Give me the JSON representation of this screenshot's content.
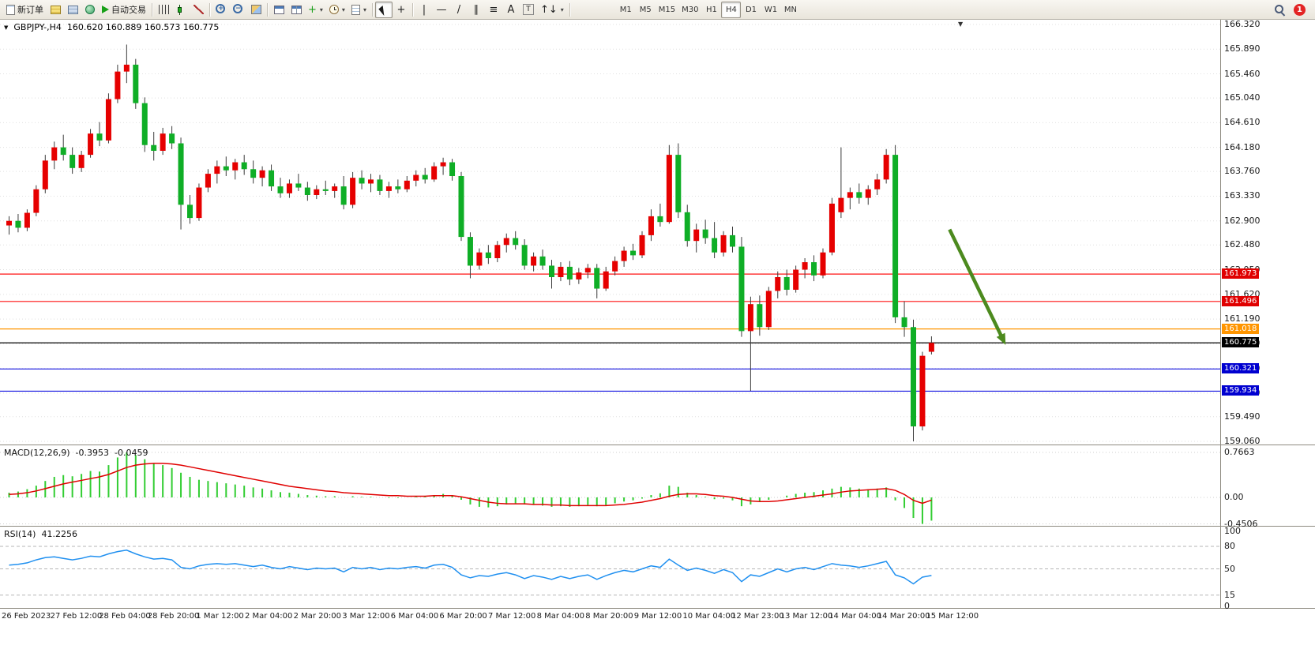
{
  "toolbar": {
    "dropdown_glyph": "▾",
    "notification_count": "1",
    "items": [
      {
        "name": "new-order-button",
        "icon": "new-order-icon",
        "shape": "doc",
        "label": "新订单"
      },
      {
        "name": "chart-group-button",
        "icon": "chart-group-icon",
        "shape": "grid-gold"
      },
      {
        "name": "market-watch-button",
        "icon": "market-watch-icon",
        "shape": "grid-blue"
      },
      {
        "name": "strategy-tester-button",
        "icon": "tester-globe-icon",
        "shape": "globe"
      },
      {
        "name": "auto-trading-button",
        "icon": "play-icon",
        "shape": "play",
        "label": "自动交易"
      },
      {
        "sep": true
      },
      {
        "name": "bar-chart-button",
        "icon": "bar-chart-icon",
        "shape": "bars"
      },
      {
        "name": "candlestick-chart-button",
        "icon": "candlestick-icon",
        "shape": "candle"
      },
      {
        "name": "line-chart-button",
        "icon": "line-chart-icon",
        "shape": "linechart"
      },
      {
        "sep": true
      },
      {
        "name": "zoom-in-button",
        "icon": "zoom-in-icon",
        "shape": "zoom-in"
      },
      {
        "name": "zoom-out-button",
        "icon": "zoom-out-icon",
        "shape": "zoom-out"
      },
      {
        "name": "new-chart-button",
        "icon": "new-chart-icon",
        "shape": "win-grid"
      },
      {
        "sep": true
      },
      {
        "name": "tile-windows-button",
        "icon": "tile-windows-icon",
        "shape": "tile1"
      },
      {
        "name": "cascade-windows-button",
        "icon": "cascade-windows-icon",
        "shape": "tile2"
      },
      {
        "name": "indicators-button",
        "icon": "indicators-plus-icon",
        "glyph": "+",
        "color": "#1a9e1a",
        "dropdown": true
      },
      {
        "name": "periods-button",
        "icon": "clock-icon",
        "shape": "clock",
        "dropdown": true
      },
      {
        "name": "templates-button",
        "icon": "template-icon",
        "shape": "template",
        "dropdown": true
      },
      {
        "sep": true
      },
      {
        "name": "cursor-button",
        "icon": "cursor-icon",
        "shape": "cursor",
        "active": true
      },
      {
        "name": "crosshair-button",
        "icon": "crosshair-icon",
        "glyph": "+"
      },
      {
        "sep": true
      },
      {
        "name": "vertical-line-button",
        "icon": "vertical-line-icon",
        "glyph": "|"
      },
      {
        "name": "horizontal-line-button",
        "icon": "horizontal-line-icon",
        "glyph": "—"
      },
      {
        "name": "trendline-button",
        "icon": "trendline-icon",
        "glyph": "/"
      },
      {
        "name": "channel-button",
        "icon": "channel-icon",
        "glyph": "∥"
      },
      {
        "name": "fibonacci-button",
        "icon": "fibonacci-icon",
        "glyph": "≡"
      },
      {
        "name": "text-button",
        "icon": "text-icon",
        "glyph": "A"
      },
      {
        "name": "label-button",
        "icon": "label-icon",
        "glyph": "T",
        "shape": "boxed"
      },
      {
        "name": "arrows-button",
        "icon": "arrows-icon",
        "glyph": "↑↓",
        "dropdown": true
      },
      {
        "sep": true
      },
      {
        "gap": true
      },
      {
        "tf": true,
        "label": "M1",
        "name": "timeframe-m1"
      },
      {
        "tf": true,
        "label": "M5",
        "name": "timeframe-m5"
      },
      {
        "tf": true,
        "label": "M15",
        "name": "timeframe-m15"
      },
      {
        "tf": true,
        "label": "M30",
        "name": "timeframe-m30"
      },
      {
        "tf": true,
        "label": "H1",
        "name": "timeframe-h1"
      },
      {
        "tf": true,
        "label": "H4",
        "name": "timeframe-h4",
        "active": true
      },
      {
        "tf": true,
        "label": "D1",
        "name": "timeframe-d1"
      },
      {
        "tf": true,
        "label": "W1",
        "name": "timeframe-w1"
      },
      {
        "tf": true,
        "label": "MN",
        "name": "timeframe-mn"
      }
    ]
  },
  "chart_data": {
    "type": "candlestick",
    "title_marker": "▼",
    "shift_marker": "▼",
    "title": {
      "symbol_period": "GBPJPY-,H4",
      "ohlc": "160.620 160.889 160.573 160.775"
    },
    "colors": {
      "up": "#e60000",
      "down": "#0fae26",
      "wick": "#3c3c3c",
      "grid": "#e0e0e0",
      "macd_hist": "#32cd32",
      "macd_signal": "#e00000",
      "rsi_line": "#2090f0",
      "arrow": "#4c8a1e"
    },
    "price_axis": {
      "max": 166.32,
      "min": 159.06,
      "labels": [
        "166.320",
        "165.890",
        "165.460",
        "165.040",
        "164.610",
        "164.180",
        "163.760",
        "163.330",
        "162.900",
        "162.480",
        "162.050",
        "161.620",
        "161.190",
        "160.760",
        "160.330",
        "159.900",
        "159.490",
        "159.060"
      ]
    },
    "hlines": [
      {
        "price": 161.973,
        "label": "161.973",
        "color": "#ff1010",
        "badge": "#e00000"
      },
      {
        "price": 161.496,
        "label": "161.496",
        "color": "#ff1010",
        "badge": "#e00000"
      },
      {
        "price": 161.018,
        "label": "161.018",
        "color": "#ff9500",
        "badge": "#ff9500"
      },
      {
        "price": 160.775,
        "label": "160.775",
        "color": "#000000",
        "badge": "#000000"
      },
      {
        "price": 160.321,
        "label": "160.321",
        "color": "#1010e0",
        "badge": "#0000d0"
      },
      {
        "price": 159.934,
        "label": "159.934",
        "color": "#1010e0",
        "badge": "#0000d0"
      }
    ],
    "arrow": {
      "from": [
        104.0,
        162.75
      ],
      "to": [
        110.2,
        160.74
      ]
    },
    "candles": [
      [
        162.82,
        162.98,
        162.66,
        162.9
      ],
      [
        162.9,
        163.02,
        162.7,
        162.78
      ],
      [
        162.78,
        163.1,
        162.72,
        163.04
      ],
      [
        163.04,
        163.52,
        162.98,
        163.45
      ],
      [
        163.45,
        164.05,
        163.38,
        163.95
      ],
      [
        163.95,
        164.28,
        163.8,
        164.18
      ],
      [
        164.18,
        164.4,
        163.95,
        164.05
      ],
      [
        164.05,
        164.18,
        163.72,
        163.82
      ],
      [
        163.82,
        164.12,
        163.75,
        164.05
      ],
      [
        164.05,
        164.5,
        164.0,
        164.42
      ],
      [
        164.42,
        164.62,
        164.2,
        164.3
      ],
      [
        164.3,
        165.12,
        164.25,
        165.02
      ],
      [
        165.02,
        165.62,
        164.95,
        165.5
      ],
      [
        165.5,
        165.97,
        165.3,
        165.62
      ],
      [
        165.62,
        165.72,
        164.85,
        164.95
      ],
      [
        164.95,
        165.05,
        164.1,
        164.22
      ],
      [
        164.22,
        164.45,
        163.95,
        164.12
      ],
      [
        164.12,
        164.52,
        164.05,
        164.42
      ],
      [
        164.42,
        164.55,
        164.15,
        164.25
      ],
      [
        164.25,
        164.35,
        162.75,
        163.18
      ],
      [
        163.18,
        163.35,
        162.85,
        162.95
      ],
      [
        162.95,
        163.55,
        162.9,
        163.48
      ],
      [
        163.48,
        163.8,
        163.4,
        163.72
      ],
      [
        163.72,
        163.95,
        163.55,
        163.85
      ],
      [
        163.85,
        164.02,
        163.68,
        163.78
      ],
      [
        163.78,
        163.98,
        163.62,
        163.92
      ],
      [
        163.92,
        164.05,
        163.7,
        163.8
      ],
      [
        163.8,
        163.95,
        163.55,
        163.65
      ],
      [
        163.65,
        163.85,
        163.5,
        163.78
      ],
      [
        163.78,
        163.88,
        163.42,
        163.5
      ],
      [
        163.5,
        163.65,
        163.3,
        163.38
      ],
      [
        163.38,
        163.62,
        163.3,
        163.55
      ],
      [
        163.55,
        163.72,
        163.42,
        163.48
      ],
      [
        163.48,
        163.58,
        163.25,
        163.35
      ],
      [
        163.35,
        163.52,
        163.28,
        163.45
      ],
      [
        163.45,
        163.6,
        163.35,
        163.42
      ],
      [
        163.42,
        163.55,
        163.3,
        163.5
      ],
      [
        163.5,
        163.68,
        163.1,
        163.18
      ],
      [
        163.18,
        163.75,
        163.12,
        163.65
      ],
      [
        163.65,
        163.78,
        163.45,
        163.55
      ],
      [
        163.55,
        163.72,
        163.4,
        163.62
      ],
      [
        163.62,
        163.7,
        163.35,
        163.42
      ],
      [
        163.42,
        163.58,
        163.3,
        163.5
      ],
      [
        163.5,
        163.62,
        163.38,
        163.45
      ],
      [
        163.45,
        163.68,
        163.4,
        163.6
      ],
      [
        163.6,
        163.78,
        163.5,
        163.7
      ],
      [
        163.7,
        163.82,
        163.55,
        163.62
      ],
      [
        163.62,
        163.92,
        163.58,
        163.85
      ],
      [
        163.85,
        164.0,
        163.7,
        163.92
      ],
      [
        163.92,
        163.98,
        163.6,
        163.68
      ],
      [
        163.68,
        163.75,
        162.55,
        162.62
      ],
      [
        162.62,
        162.7,
        161.9,
        162.12
      ],
      [
        162.12,
        162.42,
        162.05,
        162.35
      ],
      [
        162.35,
        162.48,
        162.15,
        162.25
      ],
      [
        162.25,
        162.55,
        162.18,
        162.48
      ],
      [
        162.48,
        162.68,
        162.35,
        162.6
      ],
      [
        162.6,
        162.72,
        162.4,
        162.48
      ],
      [
        162.48,
        162.58,
        162.05,
        162.12
      ],
      [
        162.12,
        162.35,
        162.02,
        162.28
      ],
      [
        162.28,
        162.4,
        162.05,
        162.12
      ],
      [
        162.12,
        162.22,
        161.72,
        161.92
      ],
      [
        161.92,
        162.18,
        161.85,
        162.1
      ],
      [
        162.1,
        162.2,
        161.78,
        161.88
      ],
      [
        161.88,
        162.08,
        161.8,
        162.0
      ],
      [
        162.0,
        162.15,
        161.9,
        162.08
      ],
      [
        162.08,
        162.15,
        161.55,
        161.72
      ],
      [
        161.72,
        162.1,
        161.68,
        162.02
      ],
      [
        162.02,
        162.28,
        161.95,
        162.2
      ],
      [
        162.2,
        162.45,
        162.1,
        162.38
      ],
      [
        162.38,
        162.5,
        162.22,
        162.3
      ],
      [
        162.3,
        162.72,
        162.25,
        162.65
      ],
      [
        162.65,
        163.1,
        162.55,
        162.98
      ],
      [
        162.98,
        163.2,
        162.8,
        162.88
      ],
      [
        162.88,
        164.22,
        162.85,
        164.05
      ],
      [
        164.05,
        164.25,
        162.95,
        163.05
      ],
      [
        163.05,
        163.18,
        162.45,
        162.55
      ],
      [
        162.55,
        162.85,
        162.35,
        162.75
      ],
      [
        162.75,
        162.92,
        162.5,
        162.6
      ],
      [
        162.6,
        162.88,
        162.25,
        162.35
      ],
      [
        162.35,
        162.72,
        162.28,
        162.65
      ],
      [
        162.65,
        162.8,
        162.35,
        162.45
      ],
      [
        162.45,
        162.62,
        160.88,
        160.98
      ],
      [
        160.98,
        161.58,
        159.94,
        161.45
      ],
      [
        161.45,
        161.6,
        160.9,
        161.05
      ],
      [
        161.05,
        161.75,
        161.0,
        161.68
      ],
      [
        161.68,
        162.02,
        161.55,
        161.92
      ],
      [
        161.92,
        162.05,
        161.6,
        161.7
      ],
      [
        161.7,
        162.12,
        161.65,
        162.05
      ],
      [
        162.05,
        162.25,
        161.9,
        162.18
      ],
      [
        162.18,
        162.3,
        161.85,
        161.95
      ],
      [
        161.95,
        162.42,
        161.9,
        162.35
      ],
      [
        162.35,
        163.3,
        162.3,
        163.2
      ],
      [
        163.05,
        164.18,
        162.95,
        163.3
      ],
      [
        163.3,
        163.48,
        163.1,
        163.4
      ],
      [
        163.4,
        163.55,
        163.2,
        163.3
      ],
      [
        163.3,
        163.52,
        163.18,
        163.45
      ],
      [
        163.45,
        163.72,
        163.35,
        163.62
      ],
      [
        163.62,
        164.15,
        163.55,
        164.05
      ],
      [
        164.05,
        164.22,
        161.12,
        161.22
      ],
      [
        161.22,
        161.5,
        160.88,
        161.05
      ],
      [
        161.05,
        161.18,
        159.06,
        159.32
      ],
      [
        159.32,
        160.62,
        159.25,
        160.55
      ],
      [
        160.62,
        160.889,
        160.573,
        160.775
      ]
    ],
    "macd": {
      "name": "MACD(12,26,9)",
      "value_main": "-0.3953",
      "value_signal": "-0.0459",
      "scale": [
        0.7663,
        0,
        -0.4506
      ],
      "scale_labels": [
        "0.7663",
        "0.00",
        "-0.4506"
      ],
      "histogram": [
        0.08,
        0.1,
        0.14,
        0.2,
        0.28,
        0.35,
        0.38,
        0.36,
        0.4,
        0.45,
        0.44,
        0.55,
        0.68,
        0.7663,
        0.72,
        0.65,
        0.58,
        0.55,
        0.5,
        0.42,
        0.35,
        0.3,
        0.28,
        0.26,
        0.24,
        0.22,
        0.2,
        0.17,
        0.15,
        0.12,
        0.09,
        0.08,
        0.06,
        0.04,
        0.03,
        0.02,
        0.02,
        0.0,
        0.02,
        0.01,
        0.01,
        0.0,
        -0.01,
        -0.01,
        0.0,
        0.02,
        0.02,
        0.04,
        0.06,
        0.04,
        -0.04,
        -0.12,
        -0.16,
        -0.17,
        -0.15,
        -0.12,
        -0.1,
        -0.12,
        -0.13,
        -0.14,
        -0.16,
        -0.15,
        -0.16,
        -0.15,
        -0.13,
        -0.15,
        -0.13,
        -0.1,
        -0.07,
        -0.05,
        -0.02,
        0.04,
        0.07,
        0.2,
        0.18,
        0.08,
        0.04,
        0.01,
        -0.03,
        -0.02,
        -0.05,
        -0.15,
        -0.12,
        -0.08,
        -0.04,
        0.0,
        0.03,
        0.06,
        0.08,
        0.09,
        0.12,
        0.15,
        0.18,
        0.17,
        0.15,
        0.14,
        0.15,
        0.17,
        -0.05,
        -0.18,
        -0.35,
        -0.4506,
        -0.3953
      ],
      "signal": [
        0.05,
        0.06,
        0.08,
        0.11,
        0.15,
        0.19,
        0.23,
        0.26,
        0.29,
        0.32,
        0.35,
        0.39,
        0.45,
        0.51,
        0.55,
        0.57,
        0.58,
        0.58,
        0.57,
        0.55,
        0.52,
        0.49,
        0.46,
        0.43,
        0.4,
        0.37,
        0.34,
        0.31,
        0.28,
        0.25,
        0.22,
        0.19,
        0.17,
        0.15,
        0.13,
        0.11,
        0.1,
        0.08,
        0.07,
        0.06,
        0.05,
        0.04,
        0.03,
        0.03,
        0.02,
        0.02,
        0.02,
        0.03,
        0.03,
        0.03,
        0.01,
        -0.02,
        -0.05,
        -0.08,
        -0.1,
        -0.11,
        -0.11,
        -0.11,
        -0.12,
        -0.12,
        -0.13,
        -0.13,
        -0.14,
        -0.14,
        -0.14,
        -0.14,
        -0.14,
        -0.13,
        -0.12,
        -0.1,
        -0.08,
        -0.05,
        -0.02,
        0.02,
        0.05,
        0.06,
        0.06,
        0.05,
        0.03,
        0.02,
        0.0,
        -0.03,
        -0.06,
        -0.07,
        -0.07,
        -0.06,
        -0.04,
        -0.02,
        0.0,
        0.02,
        0.04,
        0.06,
        0.09,
        0.11,
        0.12,
        0.13,
        0.14,
        0.15,
        0.12,
        0.05,
        -0.05,
        -0.1,
        -0.0459
      ]
    },
    "rsi": {
      "name": "RSI(14)",
      "value": "41.2256",
      "scale": [
        100,
        80,
        50,
        15,
        0
      ],
      "scale_labels": [
        "100",
        "80",
        "50",
        "15",
        "0"
      ],
      "levels": [
        80,
        50,
        15
      ],
      "values": [
        55,
        56,
        58,
        62,
        65,
        66,
        64,
        62,
        64,
        67,
        66,
        70,
        73,
        75,
        70,
        66,
        63,
        64,
        62,
        52,
        50,
        54,
        56,
        57,
        56,
        57,
        55,
        53,
        55,
        52,
        50,
        53,
        51,
        49,
        51,
        50,
        51,
        46,
        52,
        50,
        52,
        49,
        51,
        50,
        52,
        53,
        51,
        55,
        56,
        52,
        42,
        38,
        41,
        40,
        43,
        45,
        42,
        37,
        41,
        39,
        36,
        40,
        37,
        40,
        42,
        36,
        41,
        45,
        48,
        46,
        50,
        54,
        52,
        63,
        55,
        48,
        51,
        48,
        44,
        49,
        45,
        33,
        42,
        40,
        45,
        50,
        46,
        50,
        52,
        49,
        53,
        57,
        55,
        54,
        52,
        54,
        57,
        60,
        42,
        38,
        30,
        39,
        41.2256
      ]
    },
    "time_labels": [
      "26 Feb 2023",
      "27 Feb 12:00",
      "28 Feb 04:00",
      "28 Feb 20:00",
      "1 Mar 12:00",
      "2 Mar 04:00",
      "2 Mar 20:00",
      "3 Mar 12:00",
      "6 Mar 04:00",
      "6 Mar 20:00",
      "7 Mar 12:00",
      "8 Mar 04:00",
      "8 Mar 20:00",
      "9 Mar 12:00",
      "10 Mar 04:00",
      "12 Mar 23:00",
      "13 Mar 12:00",
      "14 Mar 04:00",
      "14 Mar 20:00",
      "15 Mar 12:00"
    ]
  }
}
